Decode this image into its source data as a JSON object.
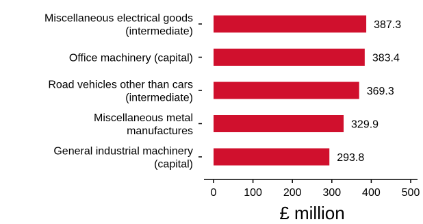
{
  "chart_data": {
    "type": "bar",
    "orientation": "horizontal",
    "categories": [
      [
        "Miscellaneous electrical goods",
        "(intermediate)"
      ],
      [
        "Office machinery (capital)"
      ],
      [
        "Road vehicles other than cars",
        "(intermediate)"
      ],
      [
        "Miscellaneous metal",
        "manufactures"
      ],
      [
        "General industrial machinery",
        "(capital)"
      ]
    ],
    "values": [
      387.3,
      383.4,
      369.3,
      329.9,
      293.8
    ],
    "value_labels": [
      "387.3",
      "383.4",
      "369.3",
      "329.9",
      "293.8"
    ],
    "xlabel": "£ million",
    "xlim": [
      0,
      500
    ],
    "xticks": [
      "0",
      "100",
      "200",
      "300",
      "400",
      "500"
    ],
    "grid": false,
    "bar_color": "#d0102d"
  }
}
